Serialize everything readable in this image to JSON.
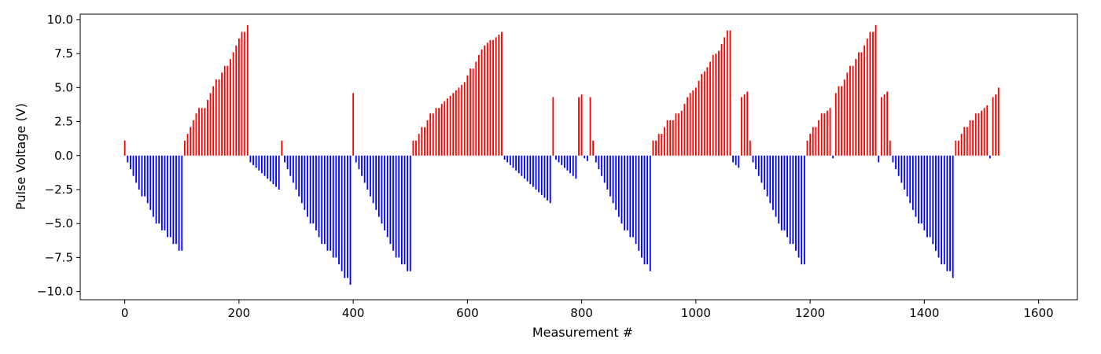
{
  "chart_data": {
    "type": "bar",
    "title": "",
    "xlabel": "Measurement #",
    "ylabel": "Pulse Voltage (V)",
    "xlim": [
      -78,
      1668
    ],
    "ylim": [
      -10.6,
      10.4
    ],
    "xticks": [
      0,
      200,
      400,
      600,
      800,
      1000,
      1200,
      1400,
      1600
    ],
    "yticks": [
      -10.0,
      -7.5,
      -5.0,
      -2.5,
      0.0,
      2.5,
      5.0,
      7.5,
      10.0
    ],
    "ytick_labels": [
      "−10.0",
      "−7.5",
      "−5.0",
      "−2.5",
      "0.0",
      "2.5",
      "5.0",
      "7.5",
      "10.0"
    ],
    "grid": false,
    "positive_color": "#ff0000",
    "negative_color": "#0000ff",
    "x_step": 5,
    "values": [
      1.1,
      -0.5,
      -1.0,
      -1.5,
      -2.0,
      -2.5,
      -3.0,
      -3.0,
      -3.5,
      -4.0,
      -4.5,
      -5.0,
      -5.0,
      -5.5,
      -5.5,
      -6.0,
      -6.0,
      -6.5,
      -6.5,
      -7.0,
      -7.0,
      1.1,
      1.6,
      2.1,
      2.6,
      3.1,
      3.5,
      3.5,
      3.5,
      4.1,
      4.6,
      5.1,
      5.6,
      5.6,
      6.1,
      6.6,
      6.6,
      7.1,
      7.6,
      8.1,
      8.6,
      9.1,
      9.1,
      9.6,
      -0.5,
      -0.7,
      -0.9,
      -1.1,
      -1.3,
      -1.5,
      -1.7,
      -1.9,
      -2.1,
      -2.3,
      -2.5,
      1.1,
      -0.5,
      -1.0,
      -1.5,
      -2.0,
      -2.5,
      -3.0,
      -3.5,
      -4.0,
      -4.5,
      -5.0,
      -5.0,
      -5.5,
      -6.0,
      -6.5,
      -6.5,
      -7.0,
      -7.0,
      -7.5,
      -7.5,
      -8.0,
      -8.5,
      -9.0,
      -9.0,
      -9.5,
      4.6,
      -0.5,
      -1.0,
      -1.5,
      -2.0,
      -2.5,
      -3.0,
      -3.5,
      -4.0,
      -4.5,
      -5.0,
      -5.5,
      -6.0,
      -6.5,
      -7.0,
      -7.5,
      -7.5,
      -8.0,
      -8.0,
      -8.5,
      -8.5,
      1.1,
      1.1,
      1.6,
      2.1,
      2.1,
      2.6,
      3.1,
      3.1,
      3.5,
      3.5,
      3.8,
      4.0,
      4.2,
      4.4,
      4.6,
      4.8,
      5.0,
      5.2,
      5.4,
      5.9,
      6.4,
      6.4,
      6.9,
      7.4,
      7.8,
      8.1,
      8.3,
      8.5,
      8.5,
      8.7,
      8.9,
      9.1,
      -0.3,
      -0.5,
      -0.7,
      -0.9,
      -1.1,
      -1.3,
      -1.5,
      -1.7,
      -1.9,
      -2.1,
      -2.3,
      -2.5,
      -2.7,
      -2.9,
      -3.1,
      -3.3,
      -3.5,
      4.3,
      -0.3,
      -0.5,
      -0.7,
      -0.9,
      -1.1,
      -1.3,
      -1.5,
      -1.7,
      4.3,
      4.5,
      -0.2,
      -0.4,
      4.3,
      1.1,
      -0.5,
      -1.0,
      -1.5,
      -2.0,
      -2.5,
      -3.0,
      -3.5,
      -4.0,
      -4.5,
      -5.0,
      -5.5,
      -5.5,
      -6.0,
      -6.0,
      -6.5,
      -7.0,
      -7.5,
      -8.0,
      -8.0,
      -8.5,
      1.1,
      1.1,
      1.6,
      1.6,
      2.1,
      2.6,
      2.6,
      2.6,
      3.1,
      3.1,
      3.3,
      3.8,
      4.3,
      4.6,
      4.8,
      5.0,
      5.5,
      6.0,
      6.2,
      6.5,
      6.9,
      7.4,
      7.5,
      7.7,
      8.2,
      8.7,
      9.2,
      9.2,
      -0.5,
      -0.7,
      -0.9,
      4.3,
      4.5,
      4.7,
      1.1,
      -0.5,
      -1.0,
      -1.5,
      -2.0,
      -2.5,
      -3.0,
      -3.5,
      -4.0,
      -4.5,
      -5.0,
      -5.5,
      -5.5,
      -6.0,
      -6.5,
      -6.5,
      -7.0,
      -7.5,
      -8.0,
      -8.0,
      1.1,
      1.6,
      2.1,
      2.1,
      2.6,
      3.1,
      3.1,
      3.3,
      3.5,
      -0.2,
      4.6,
      5.1,
      5.1,
      5.6,
      6.1,
      6.6,
      6.6,
      7.1,
      7.6,
      7.6,
      8.1,
      8.6,
      9.1,
      9.1,
      9.6,
      -0.5,
      4.3,
      4.5,
      4.7,
      1.1,
      -0.5,
      -1.0,
      -1.5,
      -2.0,
      -2.5,
      -3.0,
      -3.5,
      -4.0,
      -4.5,
      -5.0,
      -5.0,
      -5.5,
      -6.0,
      -6.0,
      -6.5,
      -7.0,
      -7.5,
      -8.0,
      -8.0,
      -8.5,
      -8.5,
      -9.0,
      1.1,
      1.1,
      1.6,
      2.1,
      2.1,
      2.6,
      2.6,
      3.1,
      3.1,
      3.3,
      3.5,
      3.7,
      -0.2,
      4.3,
      4.5,
      5.0
    ]
  }
}
